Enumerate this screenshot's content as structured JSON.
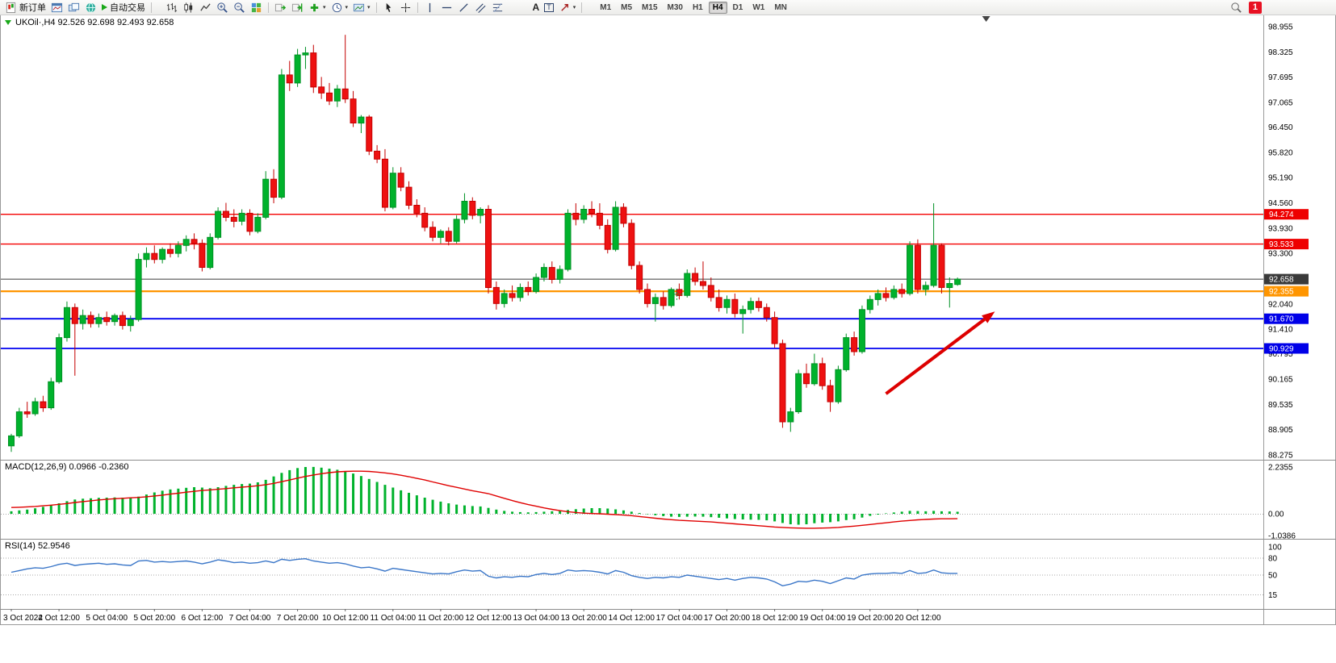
{
  "window": {
    "badge": "1"
  },
  "toolbar": {
    "new_order": "新订单",
    "auto_trading": "自动交易",
    "text_tool": "A",
    "text_label_tool": "T",
    "timeframes": [
      "M1",
      "M5",
      "M15",
      "M30",
      "H1",
      "H4",
      "D1",
      "W1",
      "MN"
    ],
    "active_timeframe": "H4"
  },
  "chart": {
    "title": "UKOil·,H4 92.526 92.698 92.493 92.658",
    "symbol": "UKOil",
    "timeframe": "H4",
    "ohlc_current": {
      "open": "92.526",
      "high": "92.698",
      "low": "92.493",
      "close": "92.658"
    },
    "macd_label": "MACD(12,26,9) 0.0966 -0.2360",
    "rsi_label": "RSI(14) 52.9546"
  },
  "chart_data": [
    {
      "type": "candlestick",
      "title": "UKOil,H4",
      "up_color": "#00b22c",
      "down_color": "#ee1111",
      "y_ticks": [
        "98.955",
        "98.325",
        "97.695",
        "97.065",
        "96.450",
        "95.820",
        "95.190",
        "94.560",
        "93.930",
        "93.300",
        "92.670",
        "92.040",
        "91.410",
        "90.795",
        "90.165",
        "89.535",
        "88.905",
        "88.275"
      ],
      "x_labels": [
        "3 Oct 2022",
        "4 Oct 12:00",
        "5 Oct 04:00",
        "5 Oct 20:00",
        "6 Oct 12:00",
        "7 Oct 04:00",
        "7 Oct 20:00",
        "10 Oct 12:00",
        "11 Oct 04:00",
        "11 Oct 20:00",
        "12 Oct 12:00",
        "13 Oct 04:00",
        "13 Oct 20:00",
        "14 Oct 12:00",
        "17 Oct 04:00",
        "17 Oct 20:00",
        "18 Oct 12:00",
        "19 Oct 04:00",
        "19 Oct 20:00",
        "20 Oct 12:00"
      ],
      "bars_per_label": 6,
      "shift_marker_bar": 122.6,
      "hlines": [
        {
          "price": 94.274,
          "label": "94.274",
          "color": "#f40000",
          "label_bg": "#ee0000",
          "width": 1.4
        },
        {
          "price": 93.533,
          "label": "93.533",
          "color": "#f40000",
          "label_bg": "#ee0000",
          "width": 1.4
        },
        {
          "price": 92.658,
          "label": "92.658",
          "color": "#3a3a3a",
          "label_bg": "#3a3a3a",
          "width": 1
        },
        {
          "price": 92.355,
          "label": "92.355",
          "color": "#ff9500",
          "label_bg": "#ff9500",
          "width": 2.2
        },
        {
          "price": 91.67,
          "label": "91.670",
          "color": "#0000f0",
          "label_bg": "#0000e8",
          "width": 1.8
        },
        {
          "price": 90.929,
          "label": "90.929",
          "color": "#0000f0",
          "label_bg": "#0000e8",
          "width": 1.8
        }
      ],
      "annotations": [
        {
          "type": "arrow",
          "from": {
            "bar": 110,
            "price": 89.8
          },
          "to": {
            "bar": 123.7,
            "price": 91.85
          },
          "color": "#dd0000"
        },
        {
          "type": "cross",
          "bar": 83.7,
          "price": 92.28,
          "color": "#00b22c"
        }
      ],
      "ohlc": [
        [
          88.5,
          88.8,
          88.35,
          88.75
        ],
        [
          88.75,
          89.45,
          88.7,
          89.35
        ],
        [
          89.35,
          89.6,
          89.2,
          89.3
        ],
        [
          89.3,
          89.7,
          89.25,
          89.6
        ],
        [
          89.6,
          89.75,
          89.35,
          89.45
        ],
        [
          89.45,
          90.2,
          89.4,
          90.1
        ],
        [
          90.1,
          91.3,
          90.05,
          91.2
        ],
        [
          91.2,
          92.1,
          91.1,
          91.95
        ],
        [
          91.95,
          92.05,
          90.25,
          91.55
        ],
        [
          91.55,
          91.9,
          91.4,
          91.75
        ],
        [
          91.75,
          91.85,
          91.45,
          91.55
        ],
        [
          91.55,
          91.8,
          91.45,
          91.7
        ],
        [
          91.7,
          91.85,
          91.5,
          91.6
        ],
        [
          91.6,
          91.8,
          91.5,
          91.75
        ],
        [
          91.75,
          91.85,
          91.4,
          91.5
        ],
        [
          91.5,
          91.75,
          91.35,
          91.65
        ],
        [
          91.65,
          93.3,
          91.6,
          93.15
        ],
        [
          93.15,
          93.45,
          92.95,
          93.3
        ],
        [
          93.3,
          93.5,
          93.05,
          93.15
        ],
        [
          93.15,
          93.45,
          93.05,
          93.4
        ],
        [
          93.4,
          93.55,
          93.2,
          93.3
        ],
        [
          93.3,
          93.6,
          93.2,
          93.5
        ],
        [
          93.5,
          93.75,
          93.35,
          93.65
        ],
        [
          93.65,
          93.8,
          93.4,
          93.55
        ],
        [
          93.55,
          93.65,
          92.85,
          92.95
        ],
        [
          92.95,
          93.8,
          92.9,
          93.7
        ],
        [
          93.7,
          94.45,
          93.65,
          94.35
        ],
        [
          94.35,
          94.56,
          94.1,
          94.2
        ],
        [
          94.2,
          94.4,
          93.95,
          94.1
        ],
        [
          94.1,
          94.4,
          94.0,
          94.3
        ],
        [
          94.3,
          94.4,
          93.75,
          93.85
        ],
        [
          93.85,
          94.3,
          93.8,
          94.2
        ],
        [
          94.2,
          95.35,
          94.15,
          95.15
        ],
        [
          95.15,
          95.4,
          94.55,
          94.7
        ],
        [
          94.7,
          97.9,
          94.65,
          97.75
        ],
        [
          97.75,
          98.1,
          97.35,
          97.55
        ],
        [
          97.55,
          98.4,
          97.45,
          98.25
        ],
        [
          98.25,
          98.45,
          97.9,
          98.3
        ],
        [
          98.3,
          98.5,
          97.3,
          97.45
        ],
        [
          97.45,
          97.7,
          97.15,
          97.3
        ],
        [
          97.3,
          97.55,
          97.0,
          97.1
        ],
        [
          97.1,
          97.5,
          96.95,
          97.4
        ],
        [
          97.4,
          98.75,
          97.05,
          97.15
        ],
        [
          97.15,
          97.35,
          96.45,
          96.55
        ],
        [
          96.55,
          96.75,
          96.3,
          96.7
        ],
        [
          96.7,
          96.75,
          95.75,
          95.85
        ],
        [
          95.85,
          96.0,
          95.55,
          95.65
        ],
        [
          95.65,
          95.9,
          94.35,
          94.45
        ],
        [
          94.45,
          95.45,
          94.4,
          95.3
        ],
        [
          95.3,
          95.45,
          94.85,
          94.95
        ],
        [
          94.95,
          95.1,
          94.4,
          94.5
        ],
        [
          94.5,
          94.65,
          94.2,
          94.3
        ],
        [
          94.3,
          94.45,
          93.85,
          93.95
        ],
        [
          93.95,
          94.1,
          93.6,
          93.7
        ],
        [
          93.7,
          93.9,
          93.55,
          93.85
        ],
        [
          93.85,
          93.95,
          93.5,
          93.6
        ],
        [
          93.6,
          94.25,
          93.55,
          94.15
        ],
        [
          94.15,
          94.8,
          94.05,
          94.6
        ],
        [
          94.6,
          94.7,
          94.15,
          94.25
        ],
        [
          94.25,
          94.45,
          94.05,
          94.4
        ],
        [
          94.4,
          94.5,
          92.3,
          92.45
        ],
        [
          92.45,
          92.6,
          91.9,
          92.05
        ],
        [
          92.05,
          92.4,
          91.95,
          92.3
        ],
        [
          92.3,
          92.5,
          92.1,
          92.2
        ],
        [
          92.2,
          92.55,
          92.1,
          92.45
        ],
        [
          92.45,
          92.6,
          92.25,
          92.35
        ],
        [
          92.35,
          92.8,
          92.3,
          92.7
        ],
        [
          92.7,
          93.05,
          92.6,
          92.95
        ],
        [
          92.95,
          93.1,
          92.55,
          92.65
        ],
        [
          92.65,
          93.0,
          92.55,
          92.9
        ],
        [
          92.9,
          94.4,
          92.85,
          94.3
        ],
        [
          94.3,
          94.55,
          94.0,
          94.15
        ],
        [
          94.15,
          94.5,
          94.05,
          94.4
        ],
        [
          94.4,
          94.6,
          94.2,
          94.3
        ],
        [
          94.3,
          94.55,
          93.9,
          94.0
        ],
        [
          94.0,
          94.15,
          93.3,
          93.4
        ],
        [
          93.4,
          94.6,
          93.35,
          94.45
        ],
        [
          94.45,
          94.55,
          93.95,
          94.05
        ],
        [
          94.05,
          94.15,
          92.9,
          93.0
        ],
        [
          93.0,
          93.1,
          92.3,
          92.4
        ],
        [
          92.4,
          92.55,
          91.95,
          92.05
        ],
        [
          92.05,
          92.3,
          91.6,
          92.2
        ],
        [
          92.2,
          92.35,
          91.9,
          92.0
        ],
        [
          92.0,
          92.45,
          91.95,
          92.4
        ],
        [
          92.4,
          92.55,
          92.15,
          92.25
        ],
        [
          92.25,
          92.9,
          92.2,
          92.8
        ],
        [
          92.8,
          92.95,
          92.5,
          92.6
        ],
        [
          92.6,
          93.1,
          92.4,
          92.5
        ],
        [
          92.5,
          92.7,
          92.1,
          92.2
        ],
        [
          92.2,
          92.4,
          91.85,
          91.95
        ],
        [
          91.95,
          92.25,
          91.8,
          92.15
        ],
        [
          92.15,
          92.3,
          91.7,
          91.8
        ],
        [
          91.8,
          92.0,
          91.3,
          91.9
        ],
        [
          91.9,
          92.2,
          91.8,
          92.1
        ],
        [
          92.1,
          92.2,
          91.85,
          91.95
        ],
        [
          91.95,
          92.05,
          91.6,
          91.7
        ],
        [
          91.7,
          91.85,
          90.95,
          91.05
        ],
        [
          91.05,
          91.15,
          88.95,
          89.1
        ],
        [
          89.1,
          89.45,
          88.85,
          89.35
        ],
        [
          89.35,
          90.4,
          89.3,
          90.3
        ],
        [
          90.3,
          90.55,
          89.95,
          90.05
        ],
        [
          90.05,
          90.8,
          90.0,
          90.55
        ],
        [
          90.55,
          90.7,
          89.9,
          90.0
        ],
        [
          90.0,
          90.15,
          89.35,
          89.6
        ],
        [
          89.6,
          90.5,
          89.55,
          90.4
        ],
        [
          90.4,
          91.3,
          90.35,
          91.2
        ],
        [
          91.2,
          91.35,
          90.75,
          90.85
        ],
        [
          90.85,
          92.0,
          90.8,
          91.9
        ],
        [
          91.9,
          92.25,
          91.8,
          92.15
        ],
        [
          92.15,
          92.4,
          92.0,
          92.3
        ],
        [
          92.3,
          92.45,
          92.1,
          92.2
        ],
        [
          92.2,
          92.5,
          92.15,
          92.4
        ],
        [
          92.4,
          92.55,
          92.2,
          92.3
        ],
        [
          92.3,
          93.6,
          92.25,
          93.5
        ],
        [
          93.5,
          93.65,
          92.3,
          92.4
        ],
        [
          92.4,
          92.6,
          92.25,
          92.5
        ],
        [
          92.5,
          94.55,
          92.45,
          93.5
        ],
        [
          93.5,
          93.55,
          92.3,
          92.45
        ],
        [
          92.45,
          92.7,
          91.95,
          92.55
        ],
        [
          92.526,
          92.698,
          92.493,
          92.658
        ]
      ]
    },
    {
      "type": "bar",
      "name": "MACD",
      "label": "MACD(12,26,9)",
      "value_main": 0.0966,
      "value_signal": -0.236,
      "y_ticks": [
        "2.2355",
        "0.00",
        "-1.0386"
      ],
      "histogram": [
        0.12,
        0.16,
        0.2,
        0.26,
        0.33,
        0.4,
        0.5,
        0.6,
        0.68,
        0.72,
        0.74,
        0.76,
        0.77,
        0.78,
        0.77,
        0.76,
        0.82,
        0.92,
        1.02,
        1.1,
        1.16,
        1.2,
        1.24,
        1.27,
        1.25,
        1.22,
        1.27,
        1.33,
        1.38,
        1.42,
        1.44,
        1.5,
        1.62,
        1.78,
        1.95,
        2.08,
        2.18,
        2.23,
        2.2355,
        2.2,
        2.15,
        2.1,
        2.02,
        1.92,
        1.8,
        1.66,
        1.52,
        1.38,
        1.25,
        1.12,
        1.0,
        0.88,
        0.77,
        0.67,
        0.58,
        0.5,
        0.44,
        0.4,
        0.37,
        0.35,
        0.28,
        0.2,
        0.14,
        0.1,
        0.08,
        0.07,
        0.08,
        0.1,
        0.12,
        0.14,
        0.18,
        0.22,
        0.25,
        0.27,
        0.27,
        0.25,
        0.21,
        0.16,
        0.1,
        0.04,
        -0.02,
        -0.07,
        -0.11,
        -0.14,
        -0.15,
        -0.14,
        -0.13,
        -0.14,
        -0.16,
        -0.19,
        -0.22,
        -0.25,
        -0.27,
        -0.28,
        -0.29,
        -0.31,
        -0.36,
        -0.44,
        -0.5,
        -0.52,
        -0.5,
        -0.45,
        -0.42,
        -0.4,
        -0.36,
        -0.3,
        -0.26,
        -0.18,
        -0.1,
        -0.04,
        0.02,
        0.06,
        0.1,
        0.14,
        0.13,
        0.12,
        0.14,
        0.12,
        0.11,
        0.0966
      ],
      "signal": [
        0.3,
        0.31,
        0.33,
        0.35,
        0.38,
        0.41,
        0.45,
        0.49,
        0.54,
        0.58,
        0.62,
        0.66,
        0.69,
        0.72,
        0.74,
        0.76,
        0.78,
        0.81,
        0.85,
        0.89,
        0.94,
        0.98,
        1.03,
        1.07,
        1.11,
        1.14,
        1.17,
        1.2,
        1.24,
        1.27,
        1.3,
        1.34,
        1.39,
        1.45,
        1.53,
        1.61,
        1.7,
        1.78,
        1.85,
        1.91,
        1.96,
        2.0,
        2.02,
        2.03,
        2.03,
        2.02,
        1.99,
        1.95,
        1.9,
        1.84,
        1.77,
        1.69,
        1.61,
        1.52,
        1.43,
        1.34,
        1.26,
        1.18,
        1.1,
        1.03,
        0.96,
        0.85,
        0.74,
        0.63,
        0.53,
        0.44,
        0.36,
        0.28,
        0.21,
        0.15,
        0.1,
        0.06,
        0.03,
        0.01,
        0.0,
        -0.02,
        -0.04,
        -0.06,
        -0.09,
        -0.13,
        -0.17,
        -0.21,
        -0.25,
        -0.28,
        -0.31,
        -0.33,
        -0.35,
        -0.37,
        -0.39,
        -0.42,
        -0.45,
        -0.48,
        -0.51,
        -0.54,
        -0.57,
        -0.6,
        -0.63,
        -0.65,
        -0.67,
        -0.68,
        -0.69,
        -0.69,
        -0.68,
        -0.67,
        -0.65,
        -0.62,
        -0.59,
        -0.55,
        -0.51,
        -0.47,
        -0.43,
        -0.39,
        -0.35,
        -0.32,
        -0.29,
        -0.27,
        -0.25,
        -0.24,
        -0.24,
        -0.236
      ],
      "histogram_color": "#00b22c",
      "signal_color": "#e00000"
    },
    {
      "type": "line",
      "name": "RSI",
      "label": "RSI(14)",
      "period": 14,
      "value": 52.9546,
      "y_ticks": [
        "100",
        "80",
        "50",
        "15"
      ],
      "levels": [
        80,
        50,
        15
      ],
      "line_color": "#3a76c8",
      "values": [
        55,
        58,
        61,
        63,
        62,
        65,
        69,
        71,
        67,
        69,
        70,
        71,
        69,
        70,
        68,
        67,
        75,
        76,
        73,
        74,
        73,
        74,
        75,
        73,
        70,
        73,
        77,
        75,
        72,
        73,
        71,
        72,
        75,
        72,
        78,
        76,
        78,
        79,
        75,
        73,
        71,
        72,
        70,
        66,
        63,
        64,
        61,
        57,
        62,
        60,
        58,
        56,
        54,
        52,
        53,
        52,
        56,
        59,
        57,
        58,
        48,
        45,
        47,
        46,
        48,
        47,
        51,
        53,
        51,
        53,
        59,
        57,
        58,
        57,
        55,
        52,
        58,
        55,
        49,
        46,
        44,
        46,
        45,
        47,
        46,
        50,
        48,
        46,
        44,
        42,
        44,
        41,
        44,
        46,
        45,
        43,
        38,
        31,
        34,
        39,
        38,
        41,
        39,
        35,
        40,
        45,
        43,
        50,
        52,
        53,
        53,
        54,
        53,
        58,
        53,
        54,
        59,
        54,
        53,
        52.95
      ]
    }
  ]
}
